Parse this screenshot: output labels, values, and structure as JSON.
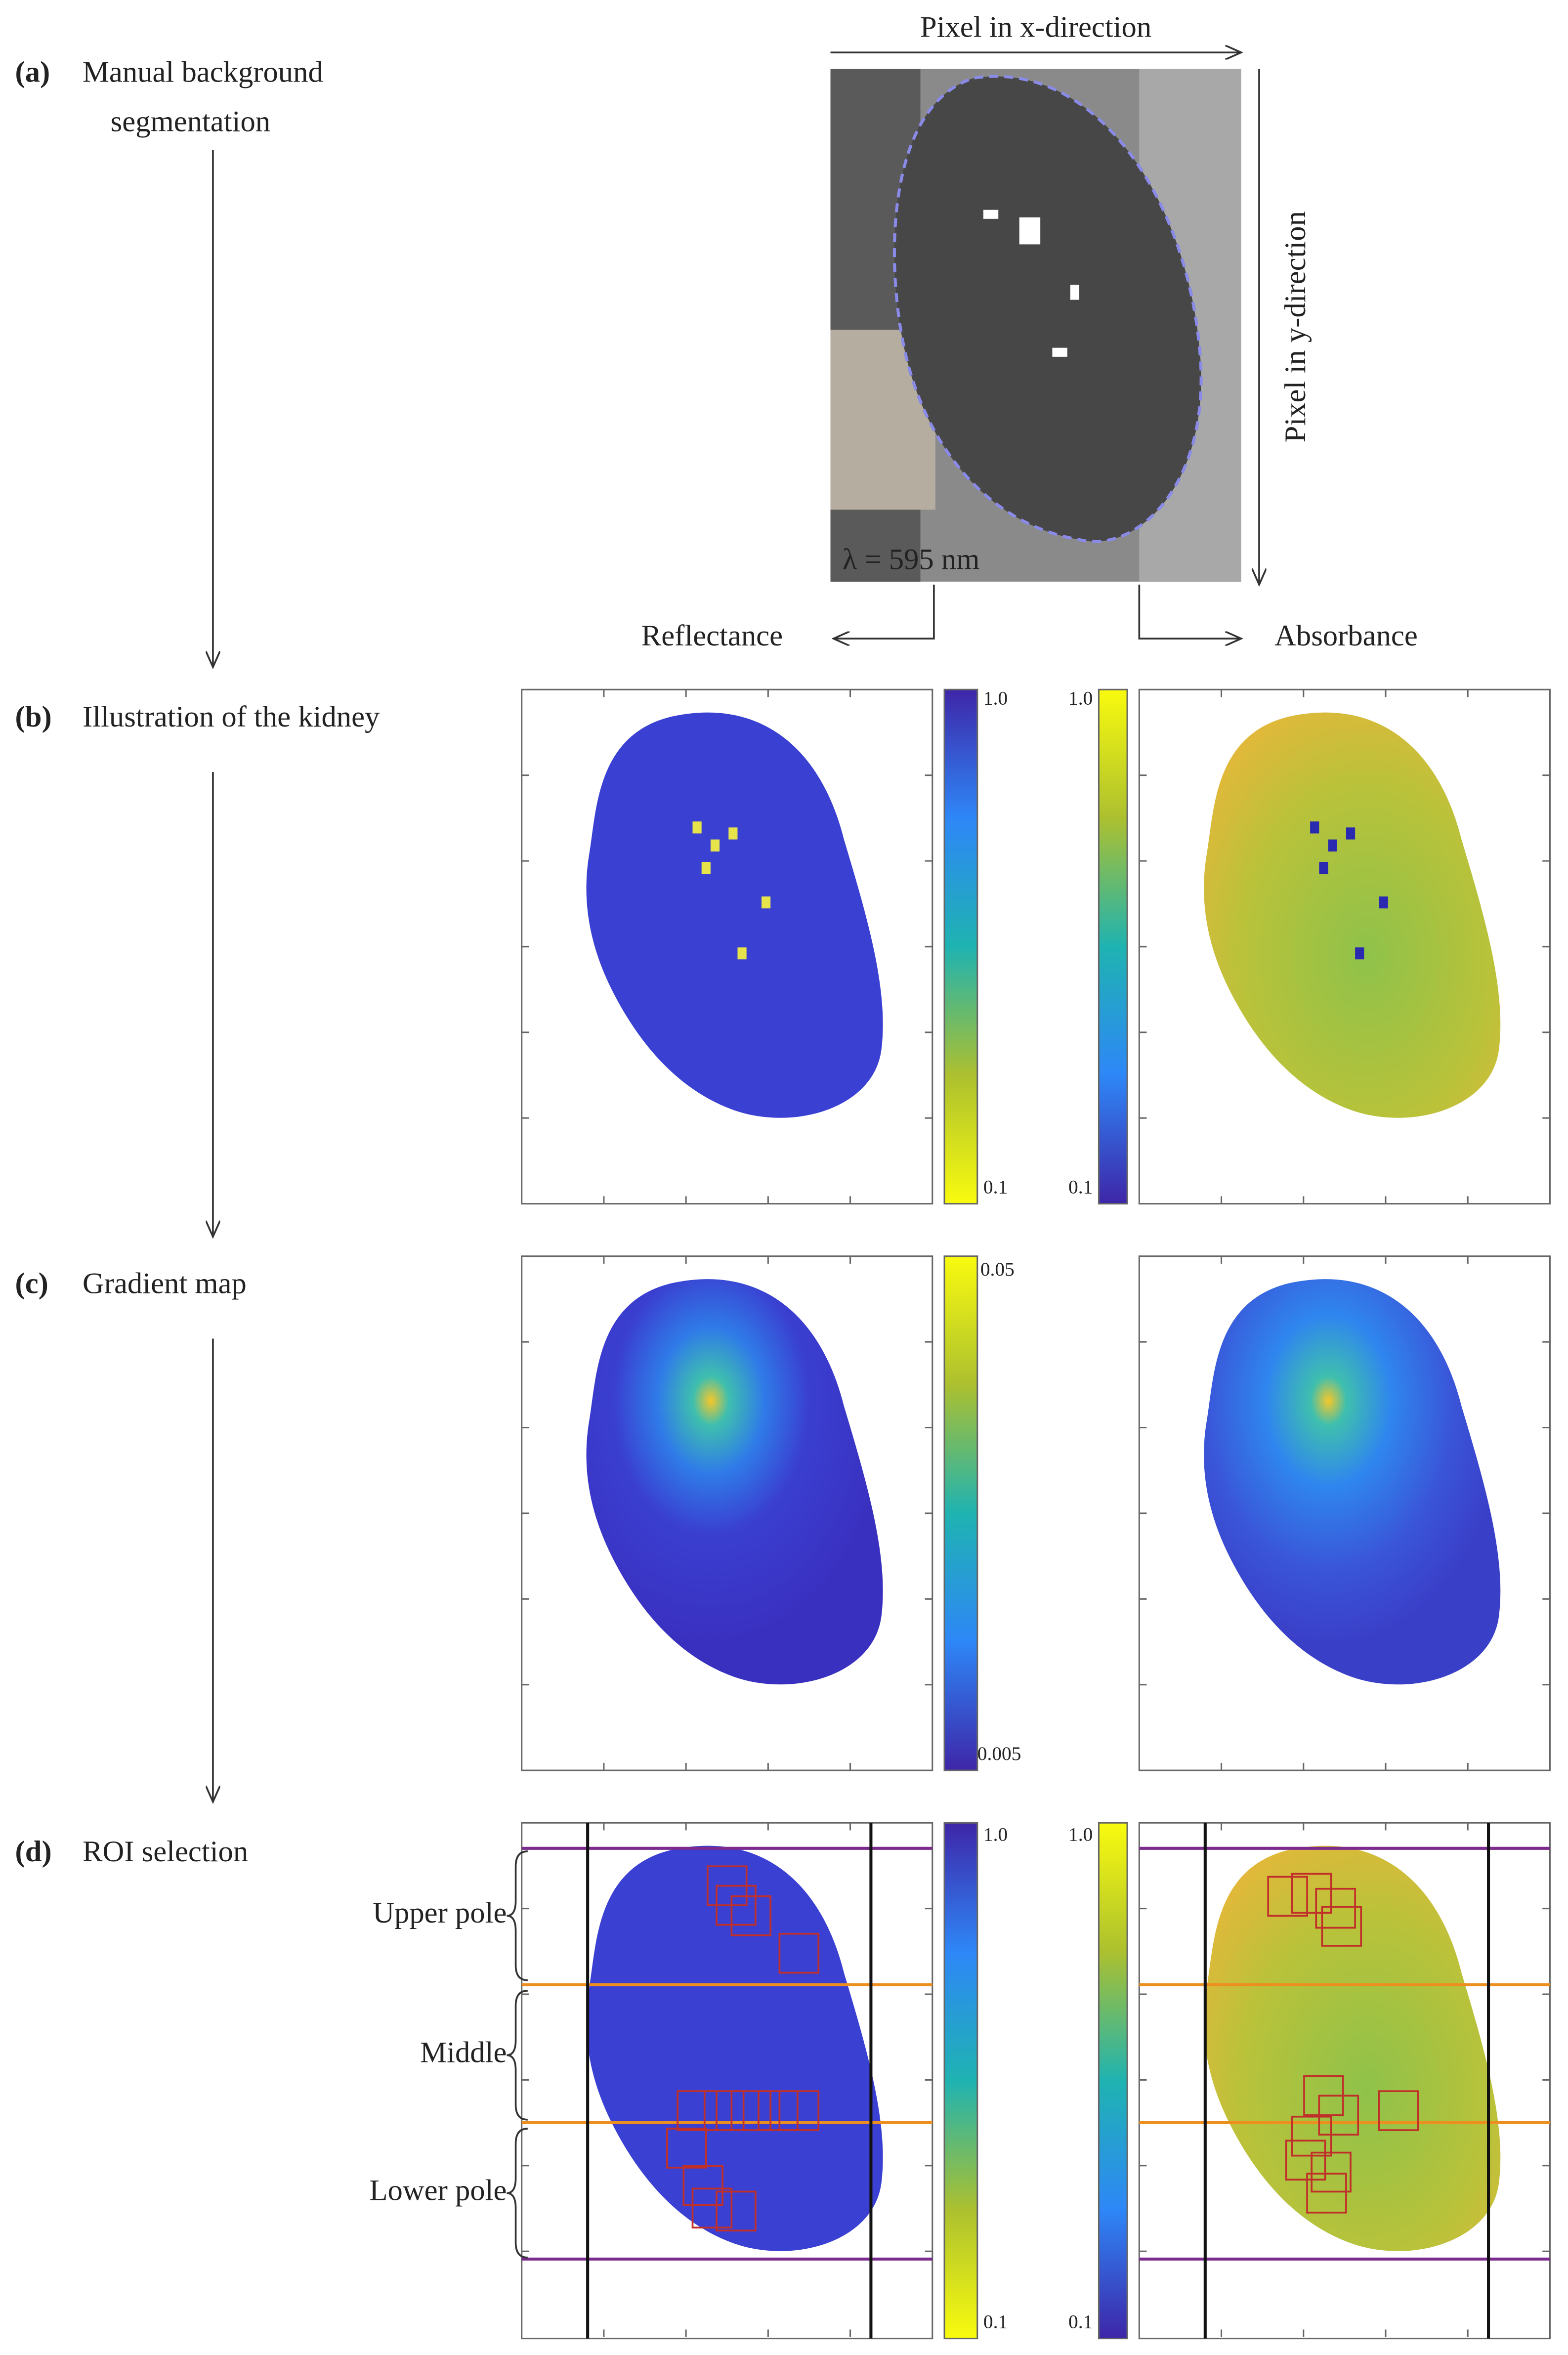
{
  "steps": [
    {
      "letter": "(a)",
      "label": [
        "Manual background",
        "segmentation"
      ]
    },
    {
      "letter": "(b)",
      "label": [
        "Illustration of the kidney"
      ]
    },
    {
      "letter": "(c)",
      "label": [
        "Gradient map"
      ]
    },
    {
      "letter": "(d)",
      "label": [
        "ROI selection"
      ]
    }
  ],
  "panel_a": {
    "x_label": "Pixel in x-direction",
    "y_label": "Pixel in y-direction",
    "wavelength_label": "λ = 595 nm"
  },
  "branches": {
    "left": "Reflectance",
    "right": "Absorbance"
  },
  "colorbars": {
    "reflectance": {
      "top": "1.0",
      "bottom": "0.1"
    },
    "absorbance": {
      "top": "1.0",
      "bottom": "0.1"
    },
    "gradient": {
      "top": "0.05",
      "bottom": "0.005"
    }
  },
  "roi_regions": [
    "Upper pole",
    "Middle",
    "Lower pole"
  ]
}
